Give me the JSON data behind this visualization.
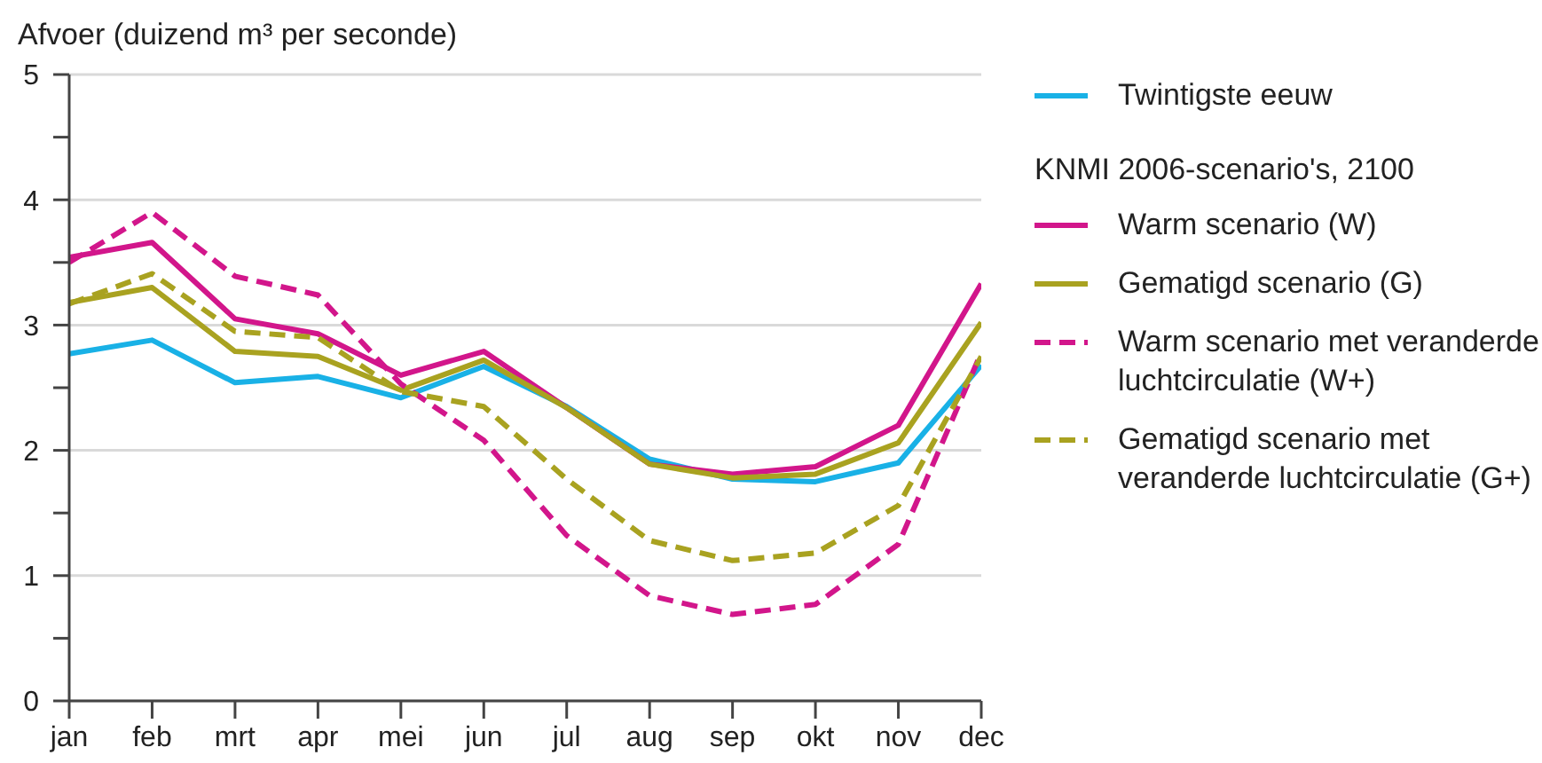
{
  "chart_data": {
    "type": "line",
    "ylabel": "Afvoer (duizend m³ per seconde)",
    "legend_title": "KNMI 2006-scenario's, 2100",
    "categories": [
      "jan",
      "feb",
      "mrt",
      "apr",
      "mei",
      "jun",
      "jul",
      "aug",
      "sep",
      "okt",
      "nov",
      "dec"
    ],
    "series": [
      {
        "name": "Twintigste eeuw",
        "color": "#19b1e6",
        "line_style": "solid",
        "values": [
          2.77,
          2.88,
          2.54,
          2.59,
          2.42,
          2.67,
          2.35,
          1.93,
          1.77,
          1.75,
          1.9,
          2.68
        ]
      },
      {
        "name": "Warm scenario (W)",
        "color": "#d2168b",
        "line_style": "solid",
        "values": [
          3.54,
          3.66,
          3.05,
          2.93,
          2.6,
          2.79,
          2.34,
          1.89,
          1.81,
          1.87,
          2.2,
          3.33
        ]
      },
      {
        "name": "Gematigd scenario (G)",
        "color": "#a9a220",
        "line_style": "solid",
        "values": [
          3.18,
          3.3,
          2.79,
          2.75,
          2.48,
          2.72,
          2.34,
          1.89,
          1.78,
          1.81,
          2.06,
          3.02
        ]
      },
      {
        "name": "Warm scenario met veranderde luchtcirculatie (W+)",
        "color": "#d2168b",
        "line_style": "dashed",
        "values": [
          3.5,
          3.9,
          3.39,
          3.24,
          2.53,
          2.08,
          1.32,
          0.84,
          0.69,
          0.77,
          1.25,
          2.78
        ]
      },
      {
        "name": "Gematigd scenario met veranderde luchtcirculatie (G+)",
        "color": "#a9a220",
        "line_style": "dashed",
        "values": [
          3.17,
          3.41,
          2.95,
          2.9,
          2.47,
          2.35,
          1.77,
          1.28,
          1.12,
          1.18,
          1.56,
          2.75
        ]
      }
    ],
    "ylim": [
      0,
      5
    ],
    "yticks": [
      0,
      {
        "value": 0.5,
        "label": null
      },
      1,
      {
        "value": 1.5,
        "label": null
      },
      2,
      {
        "value": 2.5,
        "label": null
      },
      3,
      {
        "value": 3.5,
        "label": null
      },
      4,
      {
        "value": 4.5,
        "label": null
      },
      5
    ],
    "grid": "y",
    "legend": "right"
  }
}
